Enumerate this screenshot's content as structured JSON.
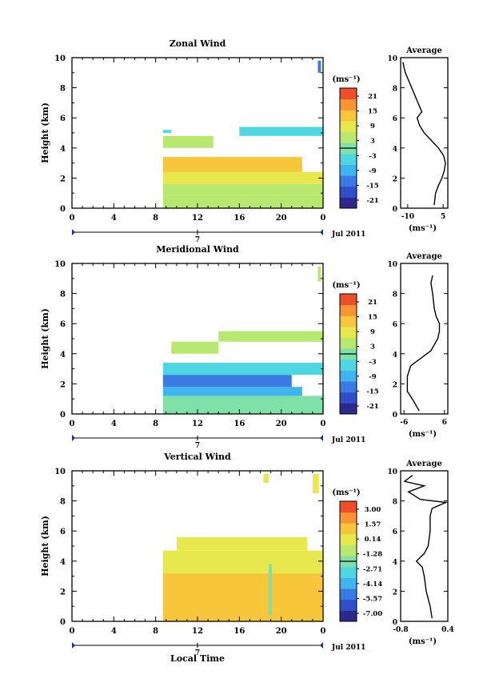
{
  "x_unit_label": "Local Time",
  "date_label": "Jul 2011",
  "day_label": "7",
  "colorbar_unit": "(ms⁻¹)",
  "avg_unit": "(ms⁻¹)",
  "avg_title": "Average",
  "colors": {
    "jet": [
      "#2b2a8c",
      "#2f4fc8",
      "#3a7be3",
      "#3fb4ee",
      "#4ed7e0",
      "#7fe0a8",
      "#b9e870",
      "#e6e84e",
      "#f7c63b",
      "#f79433",
      "#ef4e2a"
    ]
  },
  "chart_data": [
    {
      "type": "heatmap",
      "title": "Zonal Wind",
      "ylabel": "Height (km)",
      "xlim": [
        0,
        24
      ],
      "ylim": [
        0,
        10
      ],
      "xticks": [
        "0",
        "4",
        "8",
        "12",
        "16",
        "20",
        "0"
      ],
      "yticks": [
        "0",
        "2",
        "4",
        "6",
        "8",
        "10"
      ],
      "colorbar_ticks": [
        "21",
        "15",
        "9",
        "3",
        "-3",
        "-9",
        "-15",
        "-21"
      ],
      "colorbar_range": [
        -24,
        24
      ],
      "regions": [
        {
          "x": [
            8.7,
            24.0
          ],
          "y": [
            0.0,
            0.9
          ],
          "value": 5
        },
        {
          "x": [
            8.7,
            24.0
          ],
          "y": [
            0.9,
            1.6
          ],
          "value": 3
        },
        {
          "x": [
            8.7,
            24.0
          ],
          "y": [
            1.6,
            2.4
          ],
          "value": 8
        },
        {
          "x": [
            8.7,
            22.0
          ],
          "y": [
            2.4,
            3.4
          ],
          "value": 11
        },
        {
          "x": [
            8.7,
            13.5
          ],
          "y": [
            4.0,
            4.8
          ],
          "value": 4
        },
        {
          "x": [
            8.7,
            9.5
          ],
          "y": [
            5.0,
            5.2
          ],
          "value": -5
        },
        {
          "x": [
            16.0,
            24.0
          ],
          "y": [
            4.8,
            5.4
          ],
          "value": -6
        },
        {
          "x": [
            23.5,
            23.8
          ],
          "y": [
            9.0,
            9.8
          ],
          "value": -12
        }
      ],
      "average": {
        "xlim": [
          -13,
          7
        ],
        "xticks": [
          "-10",
          "5"
        ],
        "height": [
          0.2,
          1,
          1.5,
          2,
          2.5,
          3,
          3.5,
          4,
          4.5,
          5,
          5.5,
          6,
          6.4,
          9,
          9.3,
          9.7
        ],
        "value": [
          1.2,
          1.8,
          3,
          4.5,
          5.5,
          6,
          5.2,
          3,
          0,
          -3,
          -5,
          -6,
          -4,
          -11,
          -11.5,
          -12
        ]
      }
    },
    {
      "type": "heatmap",
      "title": "Meridional Wind",
      "ylabel": "Height (km)",
      "xlim": [
        0,
        24
      ],
      "ylim": [
        0,
        10
      ],
      "xticks": [
        "0",
        "4",
        "8",
        "12",
        "16",
        "20",
        "0"
      ],
      "yticks": [
        "0",
        "2",
        "4",
        "6",
        "8",
        "10"
      ],
      "colorbar_ticks": [
        "21",
        "15",
        "9",
        "3",
        "-3",
        "-9",
        "-15",
        "-21"
      ],
      "colorbar_range": [
        -24,
        24
      ],
      "regions": [
        {
          "x": [
            8.7,
            24.0
          ],
          "y": [
            0.0,
            1.2
          ],
          "value": 1
        },
        {
          "x": [
            8.7,
            22.0
          ],
          "y": [
            1.2,
            1.8
          ],
          "value": -10
        },
        {
          "x": [
            8.7,
            21.0
          ],
          "y": [
            1.8,
            2.6
          ],
          "value": -13
        },
        {
          "x": [
            8.7,
            24.0
          ],
          "y": [
            2.6,
            3.4
          ],
          "value": -5
        },
        {
          "x": [
            9.5,
            14.0
          ],
          "y": [
            4.0,
            4.8
          ],
          "value": 5
        },
        {
          "x": [
            14.0,
            24.0
          ],
          "y": [
            4.8,
            5.5
          ],
          "value": 3
        },
        {
          "x": [
            23.5,
            23.8
          ],
          "y": [
            8.8,
            9.8
          ],
          "value": 6
        }
      ],
      "average": {
        "xlim": [
          -7,
          7
        ],
        "xticks": [
          "-6",
          "6"
        ],
        "height": [
          0.2,
          0.8,
          1.5,
          2.5,
          3.2,
          3.7,
          4.2,
          5,
          5.5,
          6,
          6.5,
          7,
          8,
          8.7,
          9.2
        ],
        "value": [
          -1.5,
          -3,
          -5,
          -5,
          -4,
          -1,
          2,
          4,
          4.5,
          4.5,
          3.5,
          3,
          2.5,
          2,
          2.5
        ]
      }
    },
    {
      "type": "heatmap",
      "title": "Vertical Wind",
      "ylabel": "Height (km)",
      "xlabel": "Local Time",
      "xlim": [
        0,
        24
      ],
      "ylim": [
        0,
        10
      ],
      "xticks": [
        "0",
        "4",
        "8",
        "12",
        "16",
        "20",
        "0"
      ],
      "yticks": [
        "0",
        "2",
        "4",
        "6",
        "8",
        "10"
      ],
      "colorbar_ticks": [
        "3.00",
        "1.57",
        "0.14",
        "-1.28",
        "-2.71",
        "-4.14",
        "-5.57",
        "-7.00"
      ],
      "colorbar_range": [
        -8.2,
        3.6
      ],
      "regions": [
        {
          "x": [
            8.7,
            24.0
          ],
          "y": [
            0.0,
            3.2
          ],
          "value": 0.4
        },
        {
          "x": [
            8.7,
            24.0
          ],
          "y": [
            3.2,
            4.7
          ],
          "value": 0.2
        },
        {
          "x": [
            10.0,
            22.5
          ],
          "y": [
            4.7,
            5.6
          ],
          "value": 0.3
        },
        {
          "x": [
            18.8,
            19.1
          ],
          "y": [
            0.4,
            3.8
          ],
          "value": -2.5
        },
        {
          "x": [
            18.3,
            18.8
          ],
          "y": [
            9.2,
            9.8
          ],
          "value": 0.2
        },
        {
          "x": [
            23.0,
            23.6
          ],
          "y": [
            8.5,
            9.8
          ],
          "value": 0.1
        }
      ],
      "average": {
        "xlim": [
          -0.8,
          0.4
        ],
        "xticks": [
          "-0.8",
          "0.4"
        ],
        "height": [
          0.2,
          1,
          2,
          3,
          3.6,
          4,
          4.5,
          5,
          6,
          7,
          7.5,
          7.9,
          8.1,
          8.6,
          9,
          9.3,
          9.7
        ],
        "value": [
          0,
          -0.05,
          -0.15,
          -0.2,
          -0.25,
          -0.4,
          -0.2,
          -0.1,
          -0.05,
          -0.05,
          0,
          0.35,
          -0.3,
          -0.6,
          -0.2,
          -0.7,
          -0.5
        ]
      }
    }
  ]
}
